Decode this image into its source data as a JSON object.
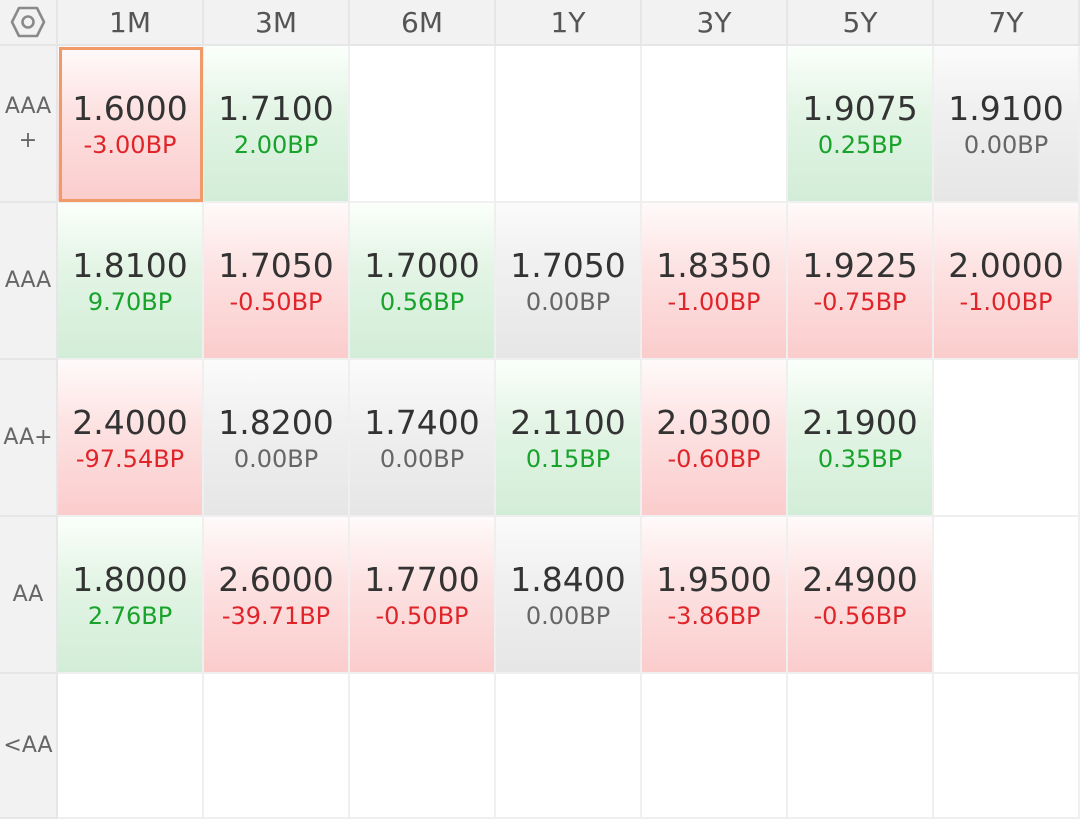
{
  "header": {
    "settings_icon": "hexagon-settings-icon",
    "columns": [
      "1M",
      "3M",
      "6M",
      "1Y",
      "3Y",
      "5Y",
      "7Y"
    ]
  },
  "rows": [
    {
      "label": "AAA\n+",
      "cells": [
        {
          "yield": "1.6000",
          "change": "-3.00BP",
          "trend": "down",
          "selected": true
        },
        {
          "yield": "1.7100",
          "change": "2.00BP",
          "trend": "up"
        },
        null,
        null,
        null,
        {
          "yield": "1.9075",
          "change": "0.25BP",
          "trend": "up"
        },
        {
          "yield": "1.9100",
          "change": "0.00BP",
          "trend": "flat"
        }
      ]
    },
    {
      "label": "AAA",
      "cells": [
        {
          "yield": "1.8100",
          "change": "9.70BP",
          "trend": "up"
        },
        {
          "yield": "1.7050",
          "change": "-0.50BP",
          "trend": "down"
        },
        {
          "yield": "1.7000",
          "change": "0.56BP",
          "trend": "up"
        },
        {
          "yield": "1.7050",
          "change": "0.00BP",
          "trend": "flat"
        },
        {
          "yield": "1.8350",
          "change": "-1.00BP",
          "trend": "down"
        },
        {
          "yield": "1.9225",
          "change": "-0.75BP",
          "trend": "down"
        },
        {
          "yield": "2.0000",
          "change": "-1.00BP",
          "trend": "down"
        }
      ]
    },
    {
      "label": "AA+",
      "cells": [
        {
          "yield": "2.4000",
          "change": "-97.54BP",
          "trend": "down"
        },
        {
          "yield": "1.8200",
          "change": "0.00BP",
          "trend": "flat"
        },
        {
          "yield": "1.7400",
          "change": "0.00BP",
          "trend": "flat"
        },
        {
          "yield": "2.1100",
          "change": "0.15BP",
          "trend": "up"
        },
        {
          "yield": "2.0300",
          "change": "-0.60BP",
          "trend": "down"
        },
        {
          "yield": "2.1900",
          "change": "0.35BP",
          "trend": "up"
        },
        null
      ]
    },
    {
      "label": "AA",
      "cells": [
        {
          "yield": "1.8000",
          "change": "2.76BP",
          "trend": "up"
        },
        {
          "yield": "2.6000",
          "change": "-39.71BP",
          "trend": "down"
        },
        {
          "yield": "1.7700",
          "change": "-0.50BP",
          "trend": "down"
        },
        {
          "yield": "1.8400",
          "change": "0.00BP",
          "trend": "flat"
        },
        {
          "yield": "1.9500",
          "change": "-3.86BP",
          "trend": "down"
        },
        {
          "yield": "2.4900",
          "change": "-0.56BP",
          "trend": "down"
        },
        null
      ]
    },
    {
      "label": "<AA",
      "cells": [
        null,
        null,
        null,
        null,
        null,
        null,
        null
      ]
    }
  ],
  "colors": {
    "down_text": "#e0252a",
    "up_text": "#18a32b",
    "flat_text": "#666666",
    "selected_border": "#f09a68"
  }
}
